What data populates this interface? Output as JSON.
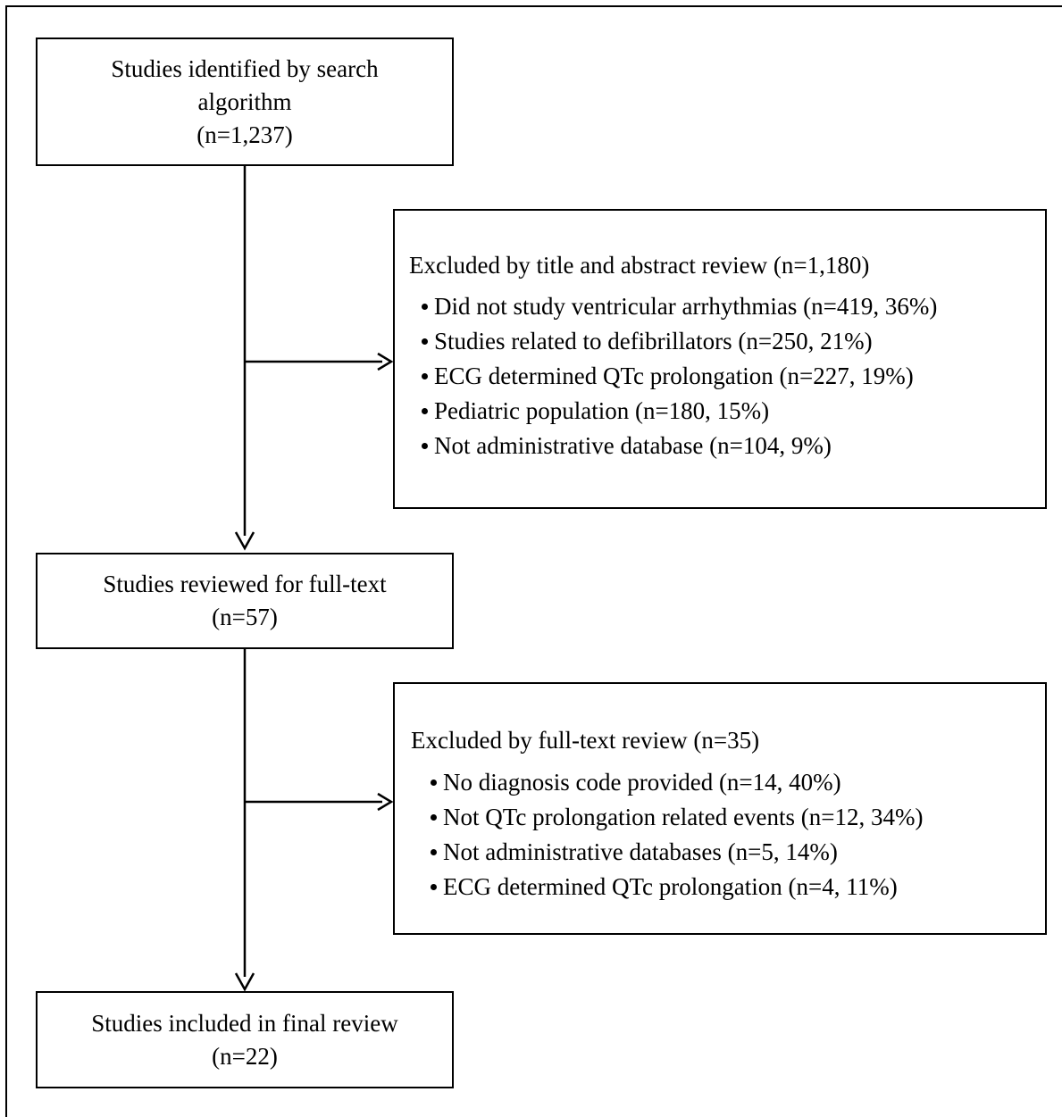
{
  "flowchart": {
    "identified": {
      "line1": "Studies identified by search",
      "line2": "algorithm",
      "count": "(n=1,237)"
    },
    "exclusion_title_abstract": {
      "heading": "Excluded by title and abstract review (n=1,180)",
      "items": [
        "Did not study ventricular arrhythmias (n=419, 36%)",
        "Studies related to defibrillators (n=250, 21%)",
        "ECG determined QTc prolongation (n=227, 19%)",
        "Pediatric population (n=180, 15%)",
        "Not administrative database (n=104, 9%)"
      ]
    },
    "full_text": {
      "line1": "Studies reviewed for full-text",
      "count": "(n=57)"
    },
    "exclusion_full_text": {
      "heading": "Excluded by full-text review (n=35)",
      "items": [
        "No diagnosis code provided (n=14, 40%)",
        "Not QTc prolongation related events (n=12, 34%)",
        "Not administrative databases (n=5, 14%)",
        "ECG determined QTc prolongation (n=4, 11%)"
      ]
    },
    "included": {
      "line1": "Studies included in final review",
      "count": "(n=22)"
    }
  }
}
